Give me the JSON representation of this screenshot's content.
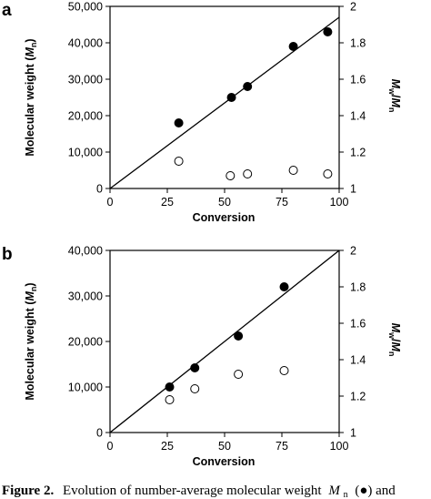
{
  "chart_data": [
    {
      "panel_label": "a",
      "type": "scatter",
      "xlabel": "Conversion",
      "ylabel": {
        "text": "Molecular weight (",
        "italic": "M",
        "sub": "n",
        "close": ")"
      },
      "y2label": {
        "a": "M",
        "a_sub": "w",
        "sep": "/",
        "b": "M",
        "b_sub": "n"
      },
      "xlim": [
        0,
        100
      ],
      "xticks": [
        0,
        25,
        50,
        75,
        100
      ],
      "xtick_labels": [
        "0",
        "25",
        "50",
        "75",
        "100"
      ],
      "ylim": [
        0,
        50000
      ],
      "yticks": [
        0,
        10000,
        20000,
        30000,
        40000,
        50000
      ],
      "ytick_labels": [
        "0",
        "10,000",
        "20,000",
        "30,000",
        "40,000",
        "50,000"
      ],
      "y2lim": [
        1,
        2
      ],
      "y2ticks": [
        1,
        1.2,
        1.4,
        1.6,
        1.8,
        2
      ],
      "y2tick_labels": [
        "1",
        "1.2",
        "1.4",
        "1.6",
        "1.8",
        "2"
      ],
      "series": [
        {
          "marker": "filled",
          "axis": "left",
          "x": [
            30,
            53,
            60,
            80,
            95
          ],
          "y": [
            18000,
            25000,
            28000,
            39000,
            43000
          ]
        },
        {
          "marker": "open",
          "axis": "right",
          "x": [
            30,
            52.5,
            60,
            80,
            95
          ],
          "y": [
            1.15,
            1.07,
            1.08,
            1.1,
            1.08
          ]
        }
      ],
      "theory_line": {
        "x": [
          0,
          100
        ],
        "y": [
          0,
          47000
        ]
      }
    },
    {
      "panel_label": "b",
      "type": "scatter",
      "xlabel": "Conversion",
      "ylabel": {
        "text": "Molecular weight (",
        "italic": "M",
        "sub": "n",
        "close": ")"
      },
      "y2label": {
        "a": "M",
        "a_sub": "w",
        "sep": "/",
        "b": "M",
        "b_sub": "n"
      },
      "xlim": [
        0,
        100
      ],
      "xticks": [
        0,
        25,
        50,
        75,
        100
      ],
      "xtick_labels": [
        "0",
        "25",
        "50",
        "75",
        "100"
      ],
      "ylim": [
        0,
        40000
      ],
      "yticks": [
        0,
        10000,
        20000,
        30000,
        40000
      ],
      "ytick_labels": [
        "0",
        "10,000",
        "20,000",
        "30,000",
        "40,000"
      ],
      "y2lim": [
        1,
        2
      ],
      "y2ticks": [
        1,
        1.2,
        1.4,
        1.6,
        1.8,
        2
      ],
      "y2tick_labels": [
        "1",
        "1.2",
        "1.4",
        "1.6",
        "1.8",
        "2"
      ],
      "series": [
        {
          "marker": "filled",
          "axis": "left",
          "x": [
            26,
            37,
            56,
            76
          ],
          "y": [
            10000,
            14200,
            21200,
            32000
          ]
        },
        {
          "marker": "open",
          "axis": "right",
          "x": [
            26,
            37,
            56,
            76
          ],
          "y": [
            1.18,
            1.24,
            1.32,
            1.34
          ]
        }
      ],
      "theory_line": {
        "x": [
          0,
          100
        ],
        "y": [
          0,
          40000
        ]
      }
    }
  ],
  "caption": {
    "label": "Figure 2.",
    "text": "Evolution of number-average molecular weight",
    "symbol_m": "M",
    "symbol_sub": "n",
    "marker_text": "(●) and"
  }
}
